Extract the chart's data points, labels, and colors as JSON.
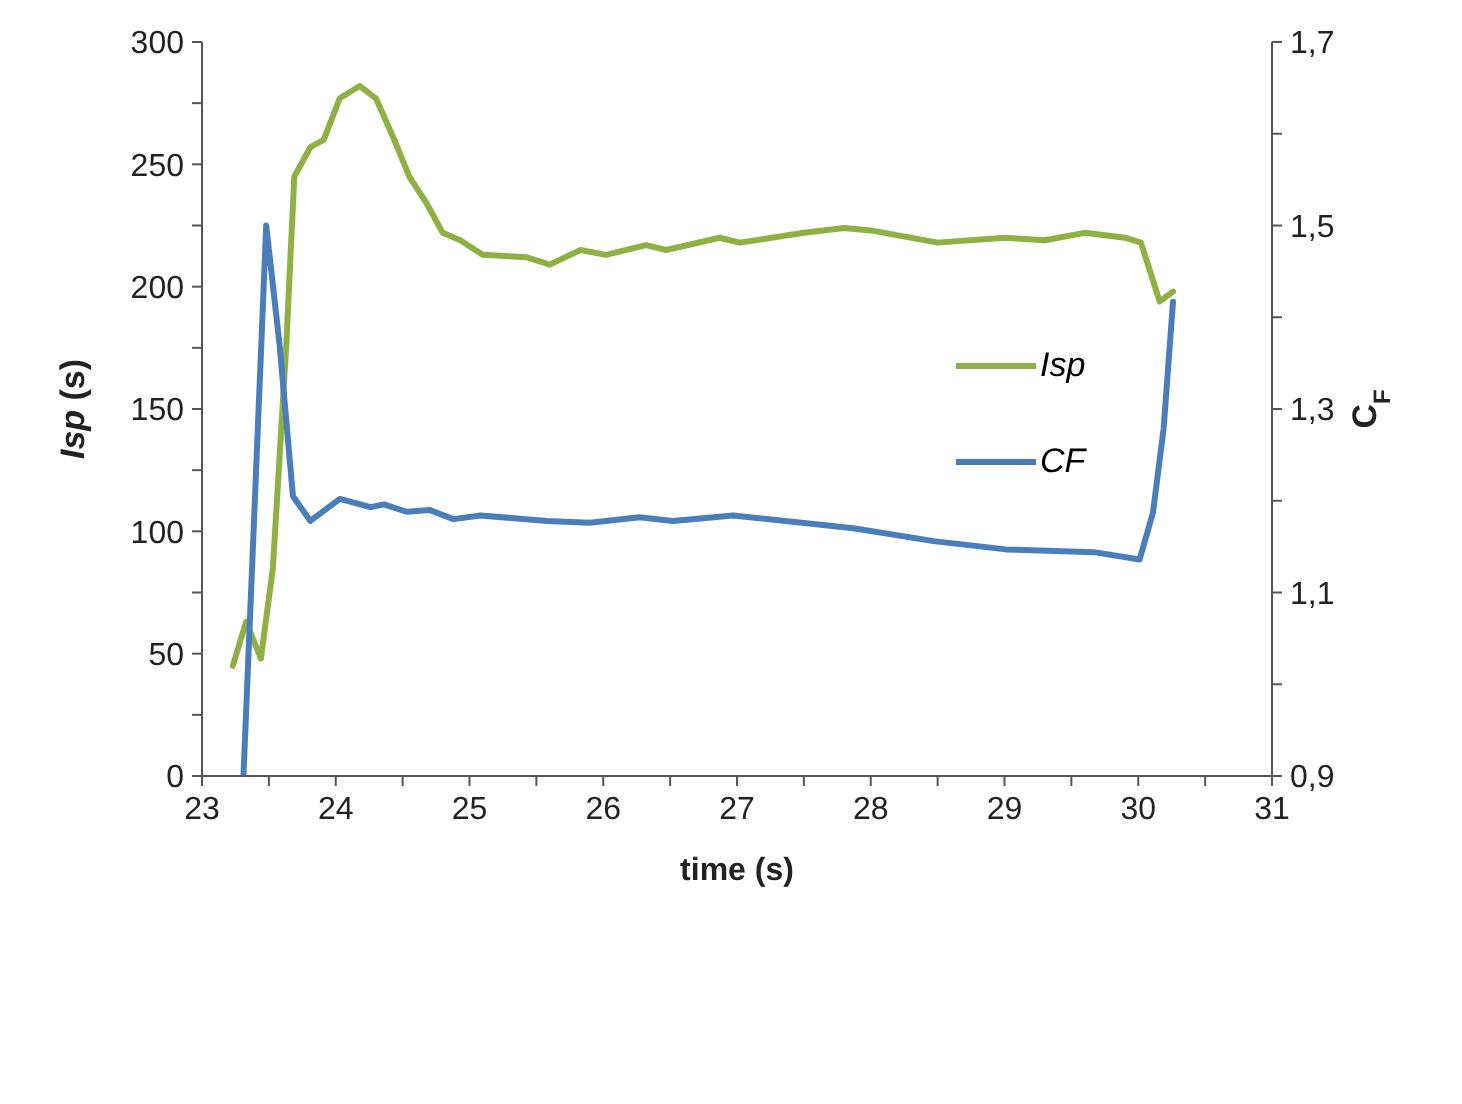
{
  "chart_data": {
    "type": "line",
    "xlabel": "time (s)",
    "ylabel": "Isp (s)",
    "y2label": "C$_{F}$",
    "xlim": [
      23,
      31
    ],
    "xticks": [
      23,
      {
        "value": 23.5,
        "label": null
      },
      24,
      {
        "value": 24.5,
        "label": null
      },
      25,
      {
        "value": 25.5,
        "label": null
      },
      26,
      {
        "value": 26.5,
        "label": null
      },
      27,
      {
        "value": 27.5,
        "label": null
      },
      28,
      {
        "value": 28.5,
        "label": null
      },
      29,
      {
        "value": 29.5,
        "label": null
      },
      30,
      {
        "value": 30.5,
        "label": null
      },
      31
    ],
    "ylim": [
      0,
      300
    ],
    "yticks": [
      0,
      {
        "value": 25,
        "label": null
      },
      50,
      {
        "value": 75,
        "label": null
      },
      100,
      {
        "value": 125,
        "label": null
      },
      150,
      {
        "value": 175,
        "label": null
      },
      200,
      {
        "value": 225,
        "label": null
      },
      250,
      {
        "value": 275,
        "label": null
      },
      300
    ],
    "y2lim": [
      0.9,
      1.7
    ],
    "y2ticks": [
      {
        "value": 0.9,
        "label": "0,9"
      },
      {
        "value": 1.0,
        "label": null
      },
      {
        "value": 1.1,
        "label": "1,1"
      },
      {
        "value": 1.2,
        "label": null
      },
      {
        "value": 1.3,
        "label": "1,3"
      },
      {
        "value": 1.4,
        "label": null
      },
      {
        "value": 1.5,
        "label": "1,5"
      },
      {
        "value": 1.6,
        "label": null
      },
      {
        "value": 1.7,
        "label": "1,7"
      }
    ],
    "grid": false,
    "legend": "right",
    "marker": "none",
    "line_style": "solid",
    "series": [
      {
        "name": "Isp",
        "color": "#8db243",
        "x": [
          23.23,
          23.33,
          23.44,
          23.53,
          23.63,
          23.69,
          23.81,
          23.91,
          24.03,
          24.18,
          24.3,
          24.43,
          24.55,
          24.68,
          24.8,
          24.93,
          25.1,
          25.43,
          25.6,
          25.83,
          26.02,
          26.32,
          26.47,
          26.87,
          27.02,
          27.5,
          27.8,
          28.0,
          28.5,
          29.0,
          29.3,
          29.6,
          29.9,
          30.02,
          30.16,
          30.26
        ],
        "values": [
          45,
          63,
          48,
          85,
          176,
          245,
          257,
          260,
          277,
          282,
          277,
          261,
          245,
          234,
          222,
          219,
          213,
          212,
          209,
          215,
          213,
          217,
          215,
          220,
          218,
          222,
          224,
          223,
          218,
          220,
          219,
          222,
          220,
          218,
          194,
          198
        ]
      },
      {
        "name": "CF",
        "color": "#4a7ebb",
        "axis": "y2",
        "x": [
          23.31,
          23.48,
          23.58,
          23.68,
          23.81,
          24.03,
          24.26,
          24.36,
          24.53,
          24.7,
          24.88,
          25.08,
          25.58,
          25.9,
          26.27,
          26.52,
          26.97,
          27.87,
          28.47,
          29.01,
          29.67,
          30.01,
          30.11,
          30.19,
          30.26
        ],
        "values": [
          0.9,
          1.5,
          1.37,
          1.205,
          1.178,
          1.202,
          1.193,
          1.196,
          1.188,
          1.19,
          1.18,
          1.184,
          1.178,
          1.176,
          1.182,
          1.178,
          1.184,
          1.17,
          1.156,
          1.147,
          1.144,
          1.136,
          1.187,
          1.279,
          1.417
        ]
      }
    ]
  }
}
